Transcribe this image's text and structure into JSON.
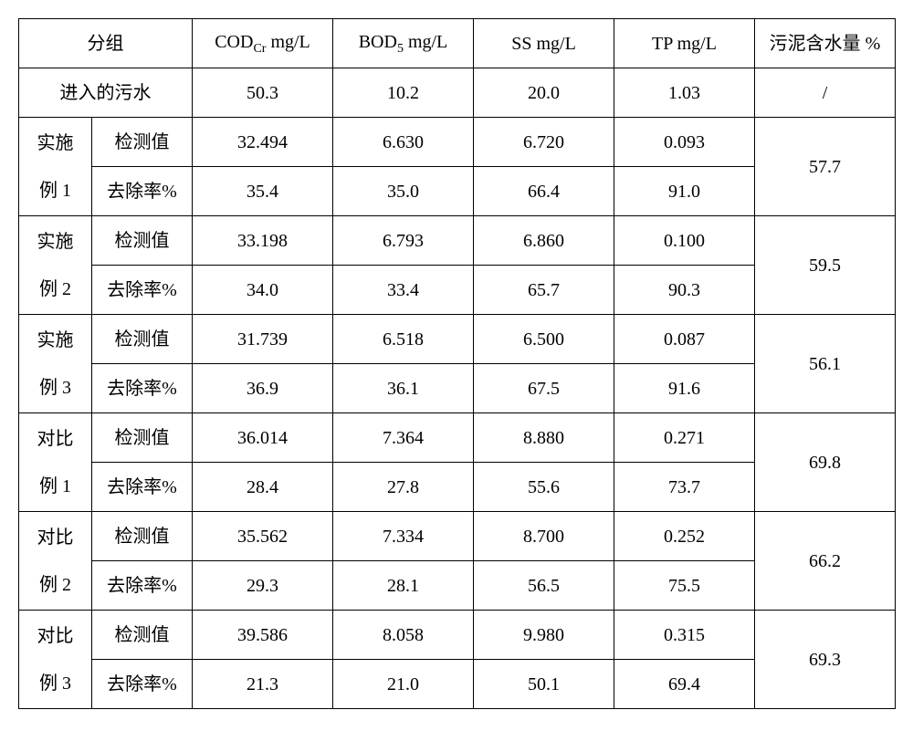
{
  "type": "table",
  "background_color": "#ffffff",
  "border_color": "#000000",
  "text_color": "#000000",
  "font_size_pt": 15,
  "columns": {
    "group": "分组",
    "cod": {
      "prefix": "COD",
      "sub": "Cr",
      "suffix": " mg/L"
    },
    "bod": {
      "prefix": "BOD",
      "sub": "5",
      "suffix": " mg/L"
    },
    "ss": "SS mg/L",
    "tp": "TP mg/L",
    "sludge": "污泥含水量 %"
  },
  "influent": {
    "label": "进入的污水",
    "cod": "50.3",
    "bod": "10.2",
    "ss": "20.0",
    "tp": "1.03",
    "sludge": "/"
  },
  "row_labels": {
    "detected": "检测值",
    "removal": "去除率%"
  },
  "groups": [
    {
      "name_line1": "实施",
      "name_line2": "例 1",
      "detected": {
        "cod": "32.494",
        "bod": "6.630",
        "ss": "6.720",
        "tp": "0.093"
      },
      "removal": {
        "cod": "35.4",
        "bod": "35.0",
        "ss": "66.4",
        "tp": "91.0"
      },
      "sludge": "57.7"
    },
    {
      "name_line1": "实施",
      "name_line2": "例 2",
      "detected": {
        "cod": "33.198",
        "bod": "6.793",
        "ss": "6.860",
        "tp": "0.100"
      },
      "removal": {
        "cod": "34.0",
        "bod": "33.4",
        "ss": "65.7",
        "tp": "90.3"
      },
      "sludge": "59.5"
    },
    {
      "name_line1": "实施",
      "name_line2": "例 3",
      "detected": {
        "cod": "31.739",
        "bod": "6.518",
        "ss": "6.500",
        "tp": "0.087"
      },
      "removal": {
        "cod": "36.9",
        "bod": "36.1",
        "ss": "67.5",
        "tp": "91.6"
      },
      "sludge": "56.1"
    },
    {
      "name_line1": "对比",
      "name_line2": "例 1",
      "detected": {
        "cod": "36.014",
        "bod": "7.364",
        "ss": "8.880",
        "tp": "0.271"
      },
      "removal": {
        "cod": "28.4",
        "bod": "27.8",
        "ss": "55.6",
        "tp": "73.7"
      },
      "sludge": "69.8"
    },
    {
      "name_line1": "对比",
      "name_line2": "例 2",
      "detected": {
        "cod": "35.562",
        "bod": "7.334",
        "ss": "8.700",
        "tp": "0.252"
      },
      "removal": {
        "cod": "29.3",
        "bod": "28.1",
        "ss": "56.5",
        "tp": "75.5"
      },
      "sludge": "66.2"
    },
    {
      "name_line1": "对比",
      "name_line2": "例 3",
      "detected": {
        "cod": "39.586",
        "bod": "8.058",
        "ss": "9.980",
        "tp": "0.315"
      },
      "removal": {
        "cod": "21.3",
        "bod": "21.0",
        "ss": "50.1",
        "tp": "69.4"
      },
      "sludge": "69.3"
    }
  ]
}
